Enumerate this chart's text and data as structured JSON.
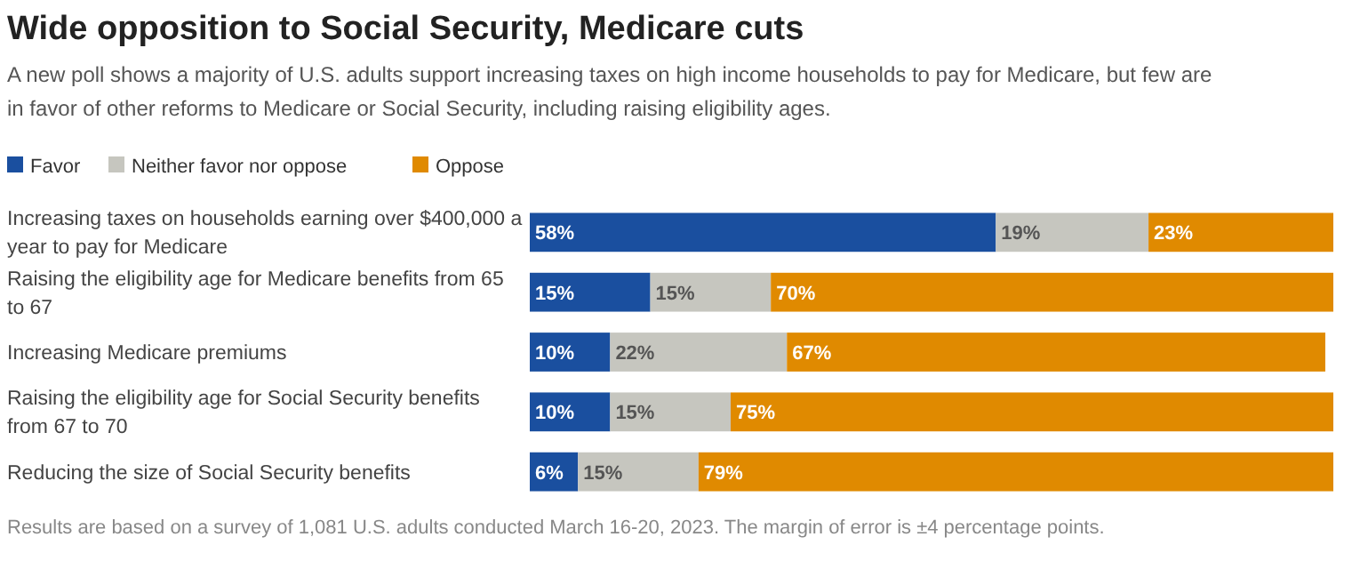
{
  "chart_data": {
    "type": "bar",
    "orientation": "horizontal",
    "stacked": true,
    "title": "Wide opposition to Social Security, Medicare cuts",
    "subtitle": "A new poll shows a majority of U.S. adults support increasing taxes on high income households to pay for Medicare, but few are in favor of other reforms to Medicare or Social Security, including raising eligibility ages.",
    "categories": [
      "Increasing taxes on households earning over $400,000 a year to pay for Medicare",
      "Raising the eligibility age for Medicare benefits from 65 to 67",
      "Increasing Medicare premiums",
      "Raising the eligibility age for Social Security benefits from 67 to 70",
      "Reducing the size of Social Security benefits"
    ],
    "series": [
      {
        "name": "Favor",
        "color": "#1a4f9f",
        "values": [
          58,
          15,
          10,
          10,
          6
        ],
        "value_labels": [
          "58%",
          "15%",
          "10%",
          "10%",
          "6%"
        ]
      },
      {
        "name": "Neither favor nor oppose",
        "color": "#c6c6bf",
        "values": [
          19,
          15,
          22,
          15,
          15
        ],
        "value_labels": [
          "19%",
          "15%",
          "22%",
          "15%",
          "15%"
        ]
      },
      {
        "name": "Oppose",
        "color": "#e08a00",
        "values": [
          23,
          70,
          67,
          75,
          79
        ],
        "value_labels": [
          "23%",
          "70%",
          "67%",
          "75%",
          "79%"
        ]
      }
    ],
    "xlim": [
      0,
      100
    ],
    "legend": "top left",
    "annotations": [
      "Results are based on a survey of 1,081 U.S. adults conducted March 16-20, 2023. The margin of error is ±4 percentage points."
    ]
  }
}
